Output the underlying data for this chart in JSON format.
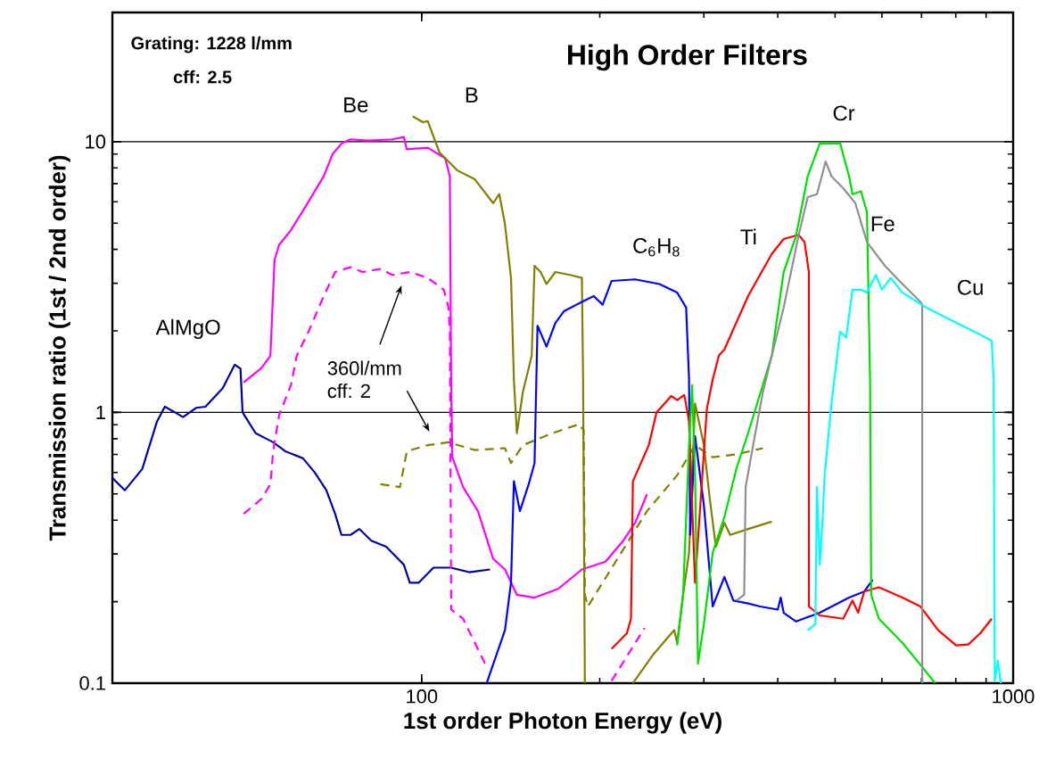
{
  "chart_data": {
    "type": "line",
    "title": "High Order Filters",
    "xlabel": "1st order Photon Energy (eV)",
    "ylabel": "Transmission ratio (1st / 2nd order)",
    "log": "xy",
    "grid": "y",
    "marker": "none",
    "xlim": [
      30,
      1000
    ],
    "ylim": [
      0.1,
      30
    ],
    "xticks": [
      100,
      1000
    ],
    "yticks": [
      0.1,
      1,
      10
    ],
    "annotations": [
      "Grating:  1228 l/mm",
      "cff:  2.5",
      "360l/mm",
      "cff: 2"
    ],
    "series": [
      {
        "name": "AlMgO",
        "color": "#0000a0",
        "x": [
          30.0,
          31.5,
          33.7,
          35.7,
          36.8,
          38.3,
          39.5,
          41.6,
          43.1,
          46.1,
          48.3,
          49.4,
          49.8,
          52.4,
          56.1,
          58.8,
          63.0,
          65.9,
          69.0,
          71.4,
          73.2,
          75.8,
          78.5,
          82.2,
          87.1,
          93.3,
          95.5,
          98.9,
          104.7,
          112.2,
          120.3,
          130.5
        ],
        "values": [
          0.573,
          0.516,
          0.618,
          0.927,
          1.05,
          1.0,
          0.961,
          1.04,
          1.05,
          1.23,
          1.5,
          1.45,
          1.0,
          0.838,
          0.776,
          0.719,
          0.677,
          0.602,
          0.516,
          0.422,
          0.353,
          0.353,
          0.371,
          0.336,
          0.319,
          0.274,
          0.235,
          0.235,
          0.267,
          0.267,
          0.257,
          0.263
        ]
      },
      {
        "name": "Be",
        "color": "#ff00ff",
        "x": [
          50.0,
          53.6,
          55.5,
          56.4,
          57.4,
          60.1,
          63.7,
          68.3,
          70.8,
          73.3,
          75.8,
          81.3,
          89.2,
          93.3,
          94.4,
          102.4,
          109.6,
          111.6,
          112.2,
          112.7,
          117.5,
          124.5,
          132.1,
          138.3,
          144.9,
          155.2,
          170.2,
          186.6,
          204.6,
          219.2,
          229.6,
          240.4
        ],
        "values": [
          1.29,
          1.46,
          1.62,
          3.65,
          4.15,
          4.71,
          5.78,
          7.45,
          9.04,
          9.85,
          10.2,
          10.1,
          10.2,
          10.4,
          9.37,
          9.5,
          8.68,
          7.45,
          1.19,
          0.683,
          0.53,
          0.432,
          0.288,
          0.263,
          0.212,
          0.207,
          0.223,
          0.263,
          0.281,
          0.336,
          0.391,
          0.499
        ]
      },
      {
        "color": "#ff00ff",
        "line_style": "dashed",
        "x": [
          50.0,
          53.6,
          55.5,
          56.1,
          57.4,
          60.1,
          61.5,
          64.4,
          68.3,
          71.4,
          75.8,
          79.5,
          85.2,
          89.2,
          95.5,
          102.4,
          109.0,
          111.0,
          111.6,
          112.2,
          117.5,
          123.0,
          128.8,
          150,
          209.5,
          238.2
        ],
        "values": [
          0.422,
          0.479,
          0.543,
          0.719,
          0.975,
          1.26,
          1.62,
          1.99,
          2.69,
          3.3,
          3.44,
          3.3,
          3.39,
          3.22,
          3.3,
          3.14,
          2.84,
          2.44,
          1.99,
          0.187,
          0.173,
          0.141,
          0.115,
          null,
          0.102,
          0.16
        ]
      },
      {
        "name": "B",
        "color": "#808000",
        "x": [
          96.6,
          100.5,
          102.4,
          107.2,
          114.9,
          123.0,
          132.1,
          135.3,
          138.3,
          141.6,
          143.2,
          144.9,
          148.3,
          153.5,
          155.2,
          158.9,
          162.6,
          168.3,
          178.2,
          186.6,
          187.5,
          188.8,
          200,
          227.6,
          246.6,
          267.3,
          270.4,
          276.7,
          283.2,
          289.9,
          300.0,
          307.0,
          314.4,
          325.0,
          332.4,
          356.4,
          390.8
        ],
        "values": [
          12.4,
          11.8,
          11.9,
          9.12,
          7.83,
          7.26,
          5.93,
          6.4,
          4.96,
          3.14,
          1.32,
          0.838,
          1.19,
          1.62,
          3.48,
          3.3,
          2.98,
          3.3,
          3.22,
          3.14,
          1.32,
          0.1,
          null,
          0.1,
          0.128,
          0.157,
          0.141,
          0.212,
          0.303,
          1.08,
          0.757,
          0.479,
          0.319,
          0.391,
          0.353,
          0.371,
          0.395
        ]
      },
      {
        "color": "#808000",
        "line_style": "dashed",
        "x": [
          85.2,
          91.9,
          94.4,
          102.4,
          111.0,
          123.0,
          138.3,
          141.6,
          148.3,
          166.3,
          184.5,
          187.9,
          188.8,
          191.0,
          214.3,
          240.4,
          270.4,
          289.9,
          310.5,
          340.4,
          377.6
        ],
        "values": [
          0.543,
          0.53,
          0.719,
          0.757,
          0.776,
          0.726,
          0.738,
          0.65,
          0.757,
          0.838,
          0.904,
          0.859,
          0.212,
          0.192,
          0.288,
          0.432,
          0.586,
          0.757,
          0.683,
          0.7,
          0.738
        ]
      },
      {
        "name": "C$_{6}$H$_{8}$",
        "color": "#0000ff",
        "x": [
          128.8,
          138.3,
          141.6,
          143.2,
          146.6,
          151.7,
          155.2,
          157.0,
          162.6,
          168.3,
          174.2,
          186.6,
          195.4,
          202.3,
          209.5,
          229.6,
          252.4,
          270.4,
          280.0,
          283.2,
          284.4,
          289.9,
          300.0,
          310.5,
          325.0,
          336.5,
          356.4,
          373.4,
          400,
          404.6,
          409.3,
          429.5,
          471,
          528,
          560,
          579
        ],
        "values": [
          0.1,
          0.157,
          0.235,
          0.557,
          0.432,
          0.543,
          0.65,
          2.09,
          1.75,
          2.14,
          2.37,
          2.56,
          2.69,
          2.5,
          3.06,
          3.1,
          2.98,
          2.77,
          2.44,
          1.32,
          0.353,
          0.817,
          0.455,
          0.192,
          0.247,
          0.202,
          0.197,
          0.192,
          0.187,
          0.207,
          0.182,
          0.169,
          0.182,
          0.207,
          0.218,
          0.241
        ]
      },
      {
        "name": "Ti",
        "color": "#ff0000",
        "x": [
          209.5,
          222.3,
          225.9,
          227.6,
          242.1,
          249.5,
          264.2,
          270.4,
          278,
          283.2,
          289.9,
          303.5,
          310.5,
          318,
          325,
          356.4,
          390.8,
          409.3,
          433.7,
          444,
          451.5,
          451.5,
          471,
          516,
          535,
          547,
          560,
          593,
          650,
          697,
          747,
          801,
          840,
          880,
          920
        ],
        "values": [
          0.134,
          0.153,
          0.173,
          0.557,
          0.757,
          1.0,
          1.15,
          1.11,
          1.16,
          0.927,
          0.235,
          1.03,
          1.32,
          1.62,
          1.71,
          2.69,
          3.85,
          4.37,
          4.53,
          4.26,
          3.3,
          0.192,
          0.178,
          0.173,
          0.202,
          0.182,
          0.218,
          0.226,
          0.207,
          0.192,
          0.157,
          0.138,
          0.139,
          0.153,
          0.173
        ]
      },
      {
        "name": "Cr",
        "color": "#00e000",
        "x": [
          270.4,
          276.7,
          283.2,
          286.6,
          289.9,
          293.2,
          300.0,
          310.5,
          325.0,
          340.4,
          356.4,
          390.8,
          409.3,
          429.5,
          449.5,
          471,
          510,
          528,
          535,
          553,
          566,
          573,
          575.5,
          593,
          650,
          713,
          738
        ],
        "values": [
          0.138,
          0.212,
          0.757,
          1.26,
          0.586,
          0.118,
          0.165,
          0.303,
          0.411,
          0.618,
          0.838,
          1.62,
          3.3,
          4.49,
          7.45,
          9.85,
          9.85,
          7.45,
          6.4,
          6.56,
          5.5,
          1.32,
          0.212,
          0.173,
          0.141,
          0.11,
          0.1
        ]
      },
      {
        "name": "Fe",
        "color": "#909090",
        "x": [
          340.4,
          351,
          353,
          365,
          377.6,
          382,
          409.3,
          433.7,
          449.5,
          466,
          482,
          493,
          516,
          541,
          566,
          607,
          650,
          697,
          702,
          702
        ],
        "values": [
          0.202,
          0.212,
          0.53,
          0.796,
          1.19,
          1.32,
          2.44,
          4.49,
          6.24,
          6.4,
          8.45,
          7.45,
          6.73,
          5.93,
          4.26,
          3.48,
          2.98,
          2.56,
          2.5,
          0.1
        ]
      },
      {
        "name": "Cu",
        "color": "#00ffff",
        "x": [
          449.5,
          463,
          466,
          471,
          476,
          480,
          493,
          510,
          522,
          535,
          553,
          566,
          586,
          600,
          621,
          650,
          713,
          783,
          859,
          920,
          927,
          931,
          942,
          953
        ],
        "values": [
          0.157,
          0.165,
          0.53,
          0.274,
          0.391,
          0.586,
          1.08,
          1.99,
          1.89,
          2.84,
          2.84,
          2.77,
          3.22,
          2.84,
          3.14,
          2.77,
          2.44,
          2.2,
          1.99,
          1.84,
          1.32,
          0.102,
          0.121,
          0.1
        ]
      }
    ]
  }
}
